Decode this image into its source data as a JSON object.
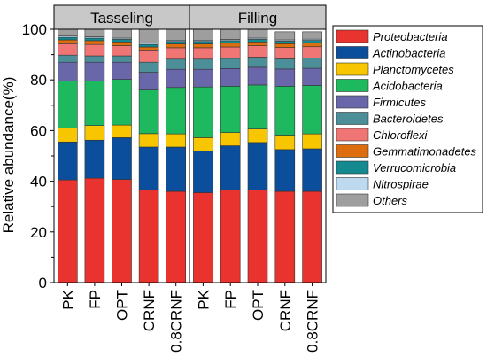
{
  "chart_data": {
    "type": "bar",
    "stacked": true,
    "ylabel": "Relative abundance(%)",
    "ylim": [
      0,
      100
    ],
    "yticks": [
      0,
      20,
      40,
      60,
      80,
      100
    ],
    "panels": [
      {
        "name": "Tasseling",
        "categories": [
          "PK",
          "FP",
          "OPT",
          "CRNF",
          "0.8CRNF"
        ]
      },
      {
        "name": "Filling",
        "categories": [
          "PK",
          "FP",
          "OPT",
          "CRNF",
          "0.8CRNF"
        ]
      }
    ],
    "legend_position": "right",
    "series": [
      {
        "name": "Proteobacteria",
        "color": "#e8332e",
        "tasseling": [
          40.5,
          41.2,
          40.7,
          36.5,
          36.0
        ],
        "filling": [
          35.5,
          36.5,
          36.5,
          36.0,
          36.0
        ]
      },
      {
        "name": "Actinobacteria",
        "color": "#0b4f9c",
        "tasseling": [
          15.0,
          15.0,
          16.5,
          17.0,
          17.5
        ],
        "filling": [
          16.5,
          17.5,
          18.8,
          16.5,
          16.8
        ]
      },
      {
        "name": "Planctomycetes",
        "color": "#f7c600",
        "tasseling": [
          5.5,
          5.8,
          5.0,
          5.3,
          5.2
        ],
        "filling": [
          5.2,
          5.2,
          5.3,
          5.7,
          5.9
        ]
      },
      {
        "name": "Acidobacteria",
        "color": "#1eb85e",
        "tasseling": [
          18.5,
          17.5,
          18.0,
          17.2,
          18.3
        ],
        "filling": [
          20.0,
          18.3,
          17.4,
          19.3,
          19.1
        ]
      },
      {
        "name": "Firmicutes",
        "color": "#6a66aa",
        "tasseling": [
          7.5,
          7.5,
          6.8,
          7.0,
          7.2
        ],
        "filling": [
          7.0,
          7.0,
          7.0,
          6.8,
          6.8
        ]
      },
      {
        "name": "Bacteroidetes",
        "color": "#4d8f99",
        "tasseling": [
          2.8,
          2.5,
          2.5,
          4.0,
          4.0
        ],
        "filling": [
          4.0,
          4.0,
          4.0,
          4.0,
          4.0
        ]
      },
      {
        "name": "Chloroflexi",
        "color": "#f07575",
        "tasseling": [
          4.5,
          4.5,
          4.0,
          4.5,
          4.5
        ],
        "filling": [
          4.5,
          4.5,
          4.5,
          4.5,
          4.5
        ]
      },
      {
        "name": "Gemmatimonadetes",
        "color": "#dd6e0f",
        "tasseling": [
          1.5,
          1.5,
          1.5,
          1.5,
          1.5
        ],
        "filling": [
          1.5,
          1.5,
          1.5,
          1.5,
          1.5
        ]
      },
      {
        "name": "Verrucomicrobia",
        "color": "#138a8f",
        "tasseling": [
          1.0,
          1.0,
          1.0,
          1.0,
          1.0
        ],
        "filling": [
          1.0,
          1.0,
          1.0,
          1.0,
          1.0
        ]
      },
      {
        "name": "Nitrospirae",
        "color": "#bcd9f0",
        "tasseling": [
          0.5,
          0.5,
          0.5,
          0.5,
          0.5
        ],
        "filling": [
          0.5,
          0.5,
          0.5,
          0.5,
          0.5
        ]
      },
      {
        "name": "Others",
        "color": "#9e9e9e",
        "tasseling": [
          2.7,
          3.0,
          3.5,
          5.5,
          4.3
        ],
        "filling": [
          4.3,
          4.0,
          3.5,
          3.2,
          2.9
        ]
      }
    ]
  }
}
